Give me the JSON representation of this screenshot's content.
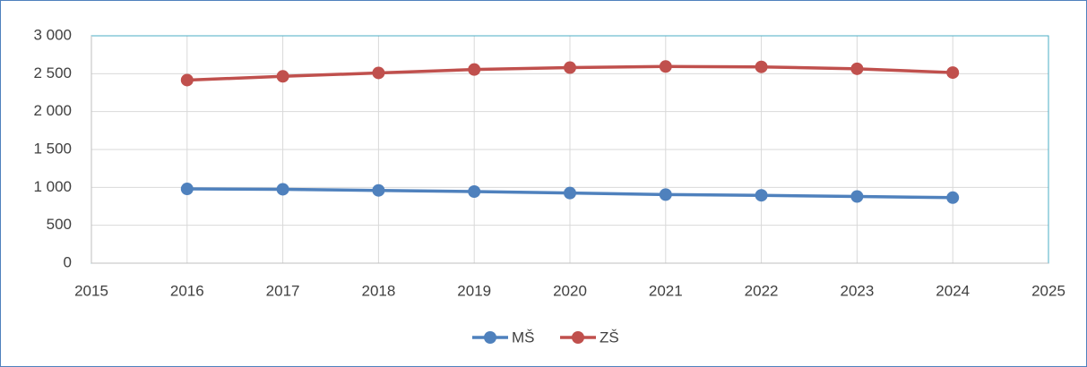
{
  "chart_data": {
    "type": "line",
    "x": [
      2016,
      2017,
      2018,
      2019,
      2020,
      2021,
      2022,
      2023,
      2024
    ],
    "series": [
      {
        "name": "MŠ",
        "color": "#4f81bd",
        "values": [
          980,
          975,
          960,
          945,
          925,
          905,
          895,
          880,
          865
        ]
      },
      {
        "name": "ZŠ",
        "color": "#c0504d",
        "values": [
          2416,
          2465,
          2510,
          2555,
          2580,
          2595,
          2590,
          2565,
          2515
        ]
      }
    ],
    "xlim": [
      2015,
      2025
    ],
    "xticks": [
      2015,
      2016,
      2017,
      2018,
      2019,
      2020,
      2021,
      2022,
      2023,
      2024,
      2025
    ],
    "ylim": [
      0,
      3000
    ],
    "yticks": [
      0,
      500,
      {
        "value": 1000,
        "label": "1 000"
      },
      {
        "value": 1500,
        "label": "1 500"
      },
      {
        "value": 2000,
        "label": "2 000"
      },
      {
        "value": 2500,
        "label": "2 500"
      },
      {
        "value": 3000,
        "label": "3 000"
      }
    ],
    "grid": true,
    "legend": "bottom"
  }
}
